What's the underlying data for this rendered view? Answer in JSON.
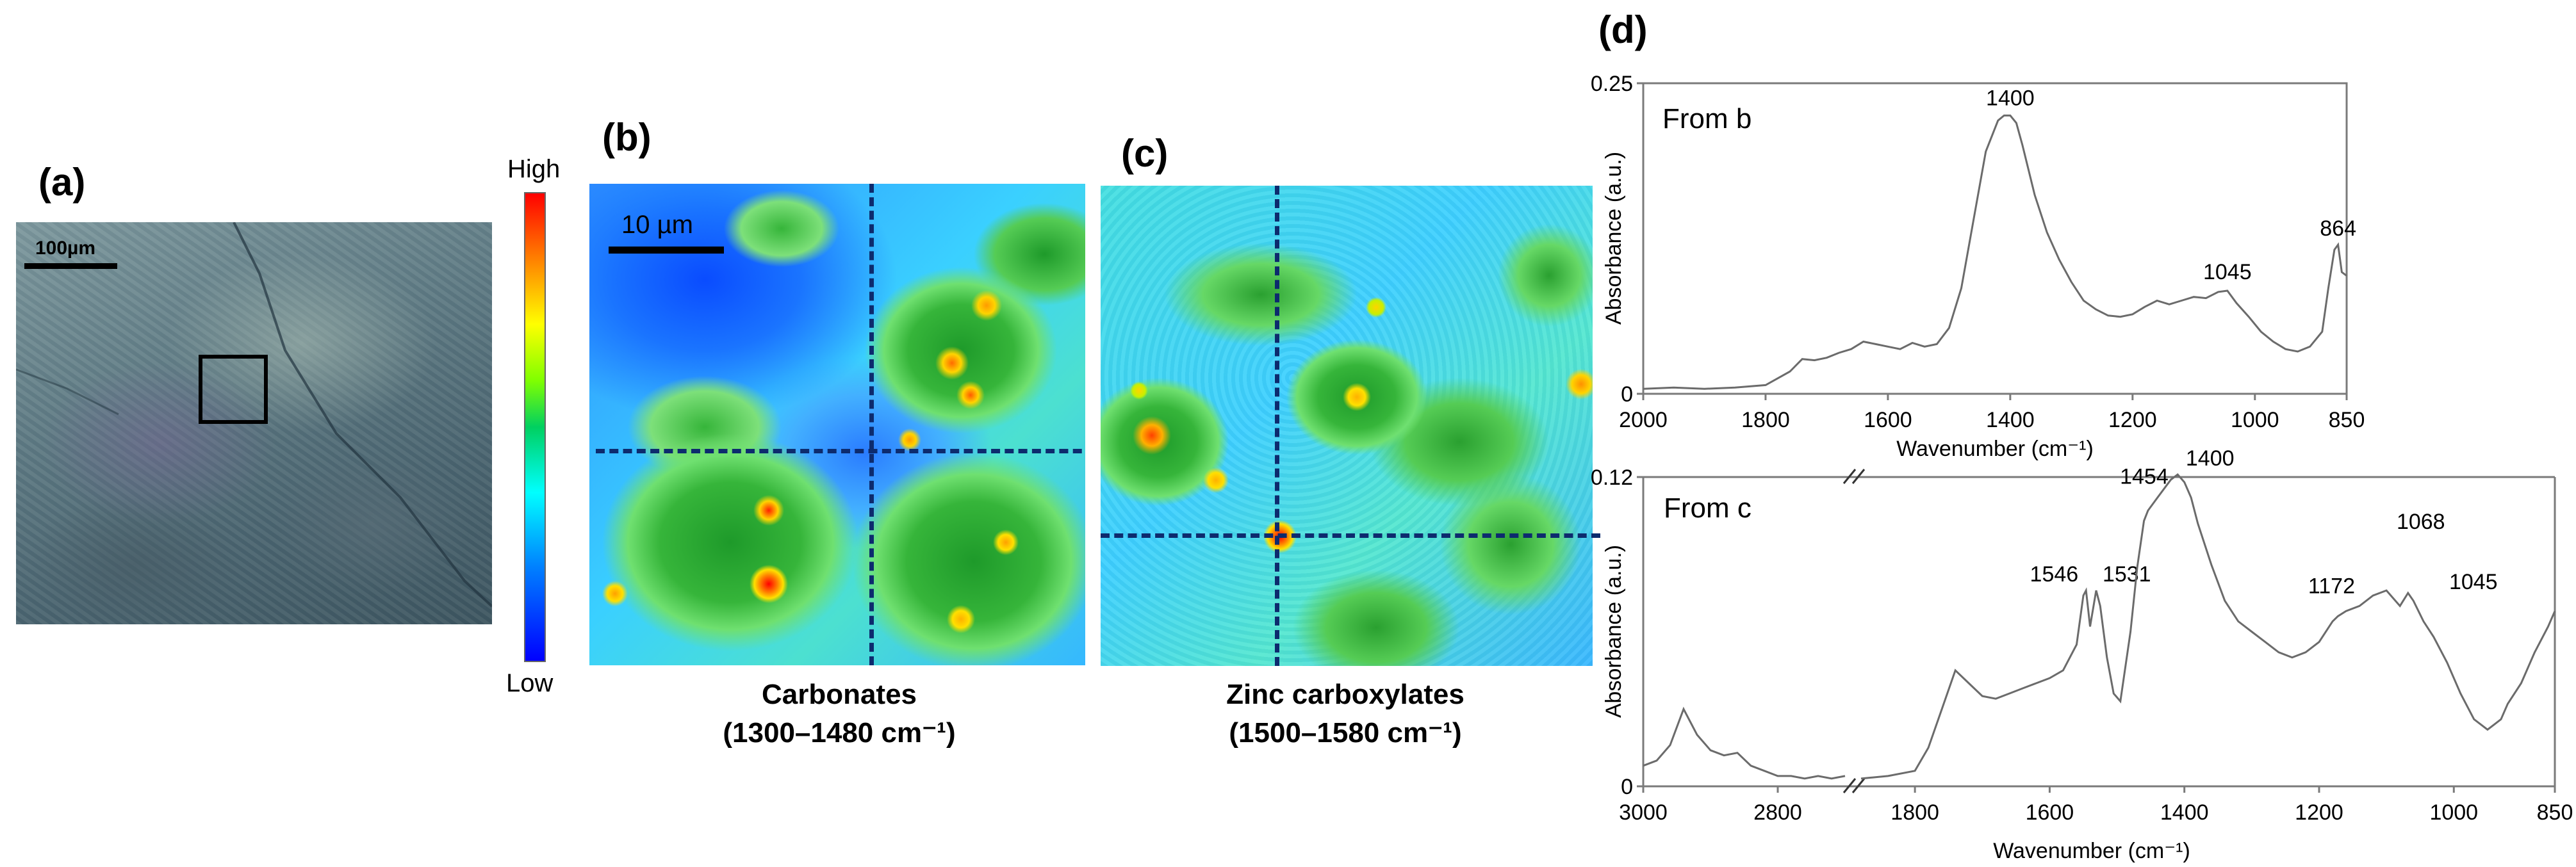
{
  "panels": {
    "a": {
      "label": "(a)",
      "scalebar": "100µm"
    },
    "b": {
      "label": "(b)",
      "scalebar": "10 µm",
      "caption_1": "Carbonates",
      "caption_2": "(1300–1480 cm⁻¹)"
    },
    "c": {
      "label": "(c)",
      "caption_1": "Zinc carboxylates",
      "caption_2": "(1500–1580 cm⁻¹)"
    },
    "d": {
      "label": "(d)"
    }
  },
  "colorbar": {
    "high": "High",
    "low": "Low"
  },
  "colors": {
    "spectrum_line": "#6b6b6b",
    "crosshair": "#0d2b6e",
    "axis": "#7a7a7a"
  },
  "chart_data": [
    {
      "type": "line",
      "panel_text": "From b",
      "xlabel": "Wavenumber (cm⁻¹)",
      "ylabel": "Absorbance (a.u.)",
      "xlim": [
        2000,
        850
      ],
      "ylim": [
        0,
        0.25
      ],
      "x_reversed": true,
      "xticks": [
        2000,
        1800,
        1600,
        1400,
        1200,
        1000,
        850
      ],
      "yticks": [
        {
          "v": 0,
          "label": "0"
        },
        {
          "v": 0.25,
          "label": "0.25"
        }
      ],
      "annotations": [
        {
          "text": "1400",
          "x": 1400,
          "y": 0.225
        },
        {
          "text": "1045",
          "x": 1045,
          "y": 0.085
        },
        {
          "text": "864",
          "x": 864,
          "y": 0.12
        }
      ],
      "series": [
        {
          "x": [
            2000,
            1950,
            1900,
            1850,
            1800,
            1760,
            1740,
            1720,
            1700,
            1680,
            1660,
            1640,
            1620,
            1600,
            1580,
            1560,
            1540,
            1520,
            1500,
            1480,
            1460,
            1440,
            1420,
            1410,
            1400,
            1390,
            1380,
            1360,
            1340,
            1320,
            1300,
            1280,
            1260,
            1240,
            1220,
            1200,
            1180,
            1160,
            1140,
            1120,
            1100,
            1080,
            1060,
            1045,
            1030,
            1010,
            990,
            970,
            950,
            930,
            910,
            890,
            880,
            870,
            864,
            858,
            850
          ],
          "y": [
            0.004,
            0.005,
            0.004,
            0.005,
            0.007,
            0.018,
            0.028,
            0.027,
            0.029,
            0.033,
            0.036,
            0.042,
            0.04,
            0.038,
            0.036,
            0.041,
            0.038,
            0.04,
            0.053,
            0.085,
            0.14,
            0.195,
            0.22,
            0.224,
            0.224,
            0.218,
            0.2,
            0.16,
            0.13,
            0.108,
            0.09,
            0.075,
            0.068,
            0.063,
            0.062,
            0.064,
            0.07,
            0.075,
            0.072,
            0.075,
            0.078,
            0.077,
            0.082,
            0.083,
            0.073,
            0.062,
            0.05,
            0.042,
            0.036,
            0.034,
            0.038,
            0.05,
            0.085,
            0.116,
            0.12,
            0.098,
            0.095
          ]
        }
      ]
    },
    {
      "type": "line",
      "panel_text": "From c",
      "xlabel": "Wavenumber (cm⁻¹)",
      "ylabel": "Absorbance (a.u.)",
      "x_reversed": true,
      "axis_break": "between 2800 and 1800",
      "ylim": [
        0,
        0.12
      ],
      "xticks_left": [
        3000,
        2800
      ],
      "xticks_right": [
        1800,
        1600,
        1400,
        1200,
        1000,
        850
      ],
      "yticks": [
        {
          "v": 0,
          "label": "0"
        },
        {
          "v": 0.12,
          "label": "0.12"
        }
      ],
      "annotations": [
        {
          "text": "1546",
          "x": 1546,
          "y": 0.077
        },
        {
          "text": "1531",
          "x": 1531,
          "y": 0.077
        },
        {
          "text": "1454",
          "x": 1454,
          "y": 0.105
        },
        {
          "text": "1400",
          "x": 1400,
          "y": 0.122
        },
        {
          "text": "1172",
          "x": 1172,
          "y": 0.07
        },
        {
          "text": "1068",
          "x": 1068,
          "y": 0.085
        },
        {
          "text": "1045",
          "x": 1045,
          "y": 0.074
        }
      ],
      "series_left": {
        "x": [
          3000,
          2980,
          2960,
          2940,
          2920,
          2900,
          2880,
          2860,
          2840,
          2820,
          2800,
          2780,
          2760,
          2740,
          2720,
          2700
        ],
        "y": [
          0.008,
          0.01,
          0.016,
          0.03,
          0.02,
          0.014,
          0.012,
          0.013,
          0.008,
          0.006,
          0.004,
          0.004,
          0.003,
          0.004,
          0.003,
          0.004
        ]
      },
      "series_right": {
        "x": [
          1880,
          1840,
          1800,
          1780,
          1760,
          1740,
          1720,
          1700,
          1680,
          1660,
          1640,
          1620,
          1600,
          1580,
          1560,
          1550,
          1546,
          1540,
          1531,
          1525,
          1515,
          1505,
          1495,
          1480,
          1470,
          1460,
          1454,
          1440,
          1420,
          1410,
          1400,
          1390,
          1380,
          1360,
          1340,
          1320,
          1300,
          1280,
          1260,
          1240,
          1220,
          1200,
          1180,
          1172,
          1160,
          1140,
          1120,
          1100,
          1080,
          1068,
          1060,
          1045,
          1030,
          1010,
          990,
          970,
          950,
          940,
          930,
          920,
          900,
          880,
          860,
          850
        ],
        "y": [
          0.003,
          0.004,
          0.006,
          0.015,
          0.03,
          0.045,
          0.04,
          0.035,
          0.034,
          0.036,
          0.038,
          0.04,
          0.042,
          0.045,
          0.055,
          0.074,
          0.076,
          0.062,
          0.076,
          0.07,
          0.05,
          0.036,
          0.033,
          0.06,
          0.085,
          0.103,
          0.107,
          0.112,
          0.119,
          0.121,
          0.118,
          0.112,
          0.102,
          0.086,
          0.072,
          0.064,
          0.06,
          0.056,
          0.052,
          0.05,
          0.052,
          0.056,
          0.064,
          0.066,
          0.068,
          0.07,
          0.074,
          0.076,
          0.07,
          0.075,
          0.072,
          0.064,
          0.058,
          0.048,
          0.036,
          0.026,
          0.022,
          0.024,
          0.026,
          0.032,
          0.04,
          0.052,
          0.062,
          0.068
        ]
      }
    }
  ]
}
